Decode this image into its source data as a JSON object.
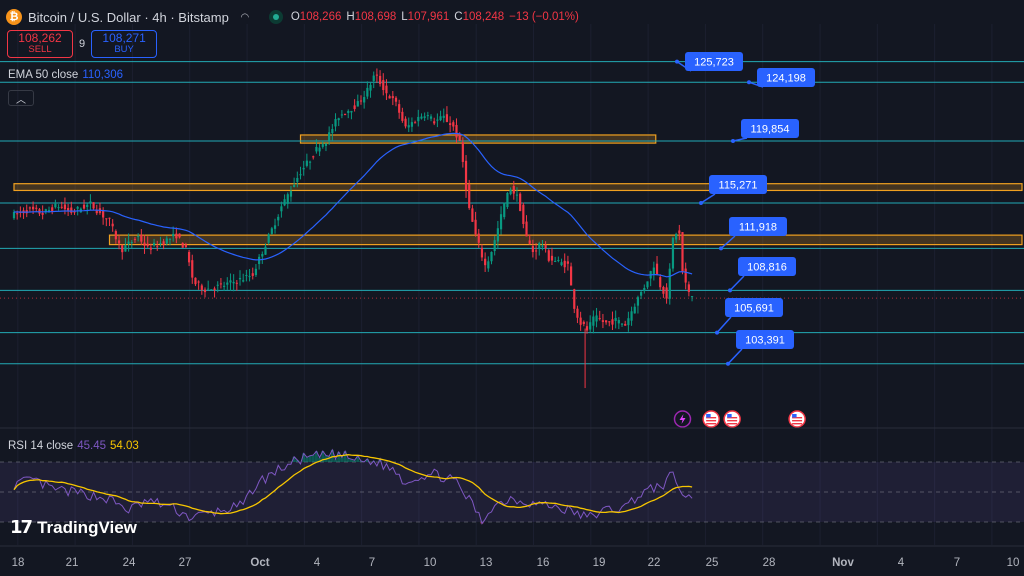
{
  "header": {
    "symbol_icon": "bitcoin-icon",
    "title": "Bitcoin / U.S. Dollar · 4h · Bitstamp",
    "ohlc": [
      {
        "key": "O",
        "value": "108,266"
      },
      {
        "key": "H",
        "value": "108,698"
      },
      {
        "key": "L",
        "value": "107,961"
      },
      {
        "key": "C",
        "value": "108,248"
      },
      {
        "key": "",
        "value": "−13 (−0.01%)"
      }
    ]
  },
  "trade": {
    "sell_price": "108,262",
    "sell_label": "SELL",
    "spread": "9",
    "buy_price": "108,271",
    "buy_label": "BUY"
  },
  "ema_legend": {
    "label": "EMA 50 close",
    "value": "110,306"
  },
  "rsi_legend": {
    "label": "RSI 14 close",
    "value1": "45.45",
    "value2": "54.03"
  },
  "brand": {
    "name": "TradingView"
  },
  "colors": {
    "up": "#089981",
    "down": "#f23645",
    "ema": "#2962ff",
    "rsi": "#7e57c2",
    "rsi_ma": "#f7c600",
    "level": "#22aab5",
    "zone": "#f0a020",
    "callout": "#2962ff"
  },
  "chart_data": {
    "type": "candlestick",
    "ylim": [
      98500,
      128500
    ],
    "x_ticks": [
      "18",
      "21",
      "24",
      "27",
      "Oct",
      "4",
      "7",
      "10",
      "13",
      "16",
      "19",
      "22",
      "25",
      "28",
      "Nov",
      "4",
      "7",
      "10"
    ],
    "price_levels": [
      125723,
      124198,
      119854,
      115271,
      111918,
      108816,
      105691,
      103391
    ],
    "zones": [
      {
        "from_day": 15,
        "to_day": 33.6,
        "low": 119700,
        "high": 120300
      },
      {
        "from_day": 0,
        "to_day": 54,
        "low": 116200,
        "high": 116700
      },
      {
        "from_day": 5,
        "to_day": 54,
        "low": 112200,
        "high": 112900
      }
    ],
    "candle_keypoints": [
      [
        0,
        114400
      ],
      [
        0.8,
        114800
      ],
      [
        1.5,
        114500
      ],
      [
        2.3,
        115100
      ],
      [
        3,
        114600
      ],
      [
        4,
        115200
      ],
      [
        5,
        113900
      ],
      [
        5.6,
        111800
      ],
      [
        6.5,
        112800
      ],
      [
        7,
        111900
      ],
      [
        7.8,
        112400
      ],
      [
        8.5,
        112900
      ],
      [
        9,
        111800
      ],
      [
        9.4,
        109400
      ],
      [
        10,
        108900
      ],
      [
        11,
        109200
      ],
      [
        12,
        109700
      ],
      [
        12.5,
        110000
      ],
      [
        13,
        111700
      ],
      [
        13.5,
        113300
      ],
      [
        14,
        115000
      ],
      [
        15,
        117600
      ],
      [
        15.5,
        118500
      ],
      [
        16,
        119600
      ],
      [
        16.3,
        119800
      ],
      [
        17,
        121700
      ],
      [
        18,
        122600
      ],
      [
        18.5,
        123600
      ],
      [
        18.9,
        124800
      ],
      [
        19.5,
        123400
      ],
      [
        20,
        122600
      ],
      [
        20.5,
        120800
      ],
      [
        21,
        121400
      ],
      [
        21.5,
        121900
      ],
      [
        22,
        121300
      ],
      [
        22.5,
        121600
      ],
      [
        23,
        120900
      ],
      [
        23.4,
        119400
      ],
      [
        23.8,
        115000
      ],
      [
        24.2,
        112700
      ],
      [
        24.7,
        110500
      ],
      [
        25.2,
        112600
      ],
      [
        25.7,
        115400
      ],
      [
        26,
        116400
      ],
      [
        26.4,
        115600
      ],
      [
        26.8,
        112800
      ],
      [
        27.2,
        111600
      ],
      [
        27.6,
        112400
      ],
      [
        28,
        111200
      ],
      [
        28.5,
        110900
      ],
      [
        29,
        110700
      ],
      [
        29.3,
        107800
      ],
      [
        29.6,
        106500
      ],
      [
        30,
        105900
      ],
      [
        30.4,
        106800
      ],
      [
        31,
        106400
      ],
      [
        31.5,
        106600
      ],
      [
        32,
        106300
      ],
      [
        32.5,
        107800
      ],
      [
        33,
        109100
      ],
      [
        33.5,
        110700
      ],
      [
        33.8,
        109300
      ],
      [
        34.2,
        108300
      ],
      [
        34.5,
        112600
      ],
      [
        34.8,
        113500
      ],
      [
        35,
        110200
      ],
      [
        35.3,
        108600
      ],
      [
        35.6,
        108248
      ]
    ],
    "rsi_keypoints": [
      [
        0,
        55
      ],
      [
        1,
        58
      ],
      [
        2,
        52
      ],
      [
        3,
        50
      ],
      [
        4,
        48
      ],
      [
        5,
        45
      ],
      [
        6,
        38
      ],
      [
        7,
        44
      ],
      [
        8,
        41
      ],
      [
        8.8,
        36
      ],
      [
        9.2,
        33
      ],
      [
        10,
        35
      ],
      [
        11,
        38
      ],
      [
        12,
        41
      ],
      [
        12.5,
        52
      ],
      [
        13,
        58
      ],
      [
        14,
        66
      ],
      [
        15,
        72
      ],
      [
        16,
        74
      ],
      [
        17,
        75
      ],
      [
        18,
        71
      ],
      [
        19,
        70
      ],
      [
        20,
        64
      ],
      [
        20.5,
        56
      ],
      [
        21,
        60
      ],
      [
        22,
        62
      ],
      [
        23,
        58
      ],
      [
        24,
        42
      ],
      [
        24.5,
        30
      ],
      [
        25,
        40
      ],
      [
        26,
        46
      ],
      [
        27,
        43
      ],
      [
        28,
        41
      ],
      [
        29,
        38
      ],
      [
        30,
        33
      ],
      [
        31,
        38
      ],
      [
        32,
        40
      ],
      [
        32.5,
        46
      ],
      [
        33,
        50
      ],
      [
        34,
        55
      ],
      [
        34.5,
        62
      ],
      [
        35,
        48
      ],
      [
        35.6,
        45.45
      ]
    ],
    "rsi_ma_end": 54.03,
    "callouts": [
      {
        "label": "125,723",
        "value": 125723
      },
      {
        "label": "124,198",
        "value": 124198
      },
      {
        "label": "119,854",
        "value": 119854
      },
      {
        "label": "115,271",
        "value": 115271
      },
      {
        "label": "111,918",
        "value": 111918
      },
      {
        "label": "108,816",
        "value": 108816
      },
      {
        "label": "105,691",
        "value": 105691
      },
      {
        "label": "103,391",
        "value": 103391
      }
    ],
    "events": [
      {
        "day": 35,
        "icon": "flash-icon"
      },
      {
        "day": 36.5,
        "icon": "us-flag-icon"
      },
      {
        "day": 37.6,
        "icon": "us-flag-icon"
      },
      {
        "day": 41,
        "icon": "us-flag-icon"
      }
    ]
  }
}
